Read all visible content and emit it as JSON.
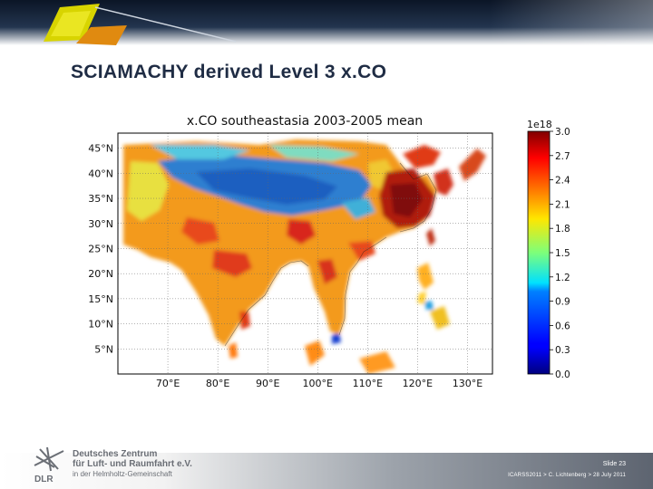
{
  "slide": {
    "title": "SCIAMACHY derived Level 3 x.CO",
    "slide_number": "Slide 23",
    "footer_caption": "ICARSS2011 > C. Lichtenberg > 28 July 2011"
  },
  "logo": {
    "line1": "Deutsches Zentrum",
    "line2": "für Luft- und Raumfahrt e.V.",
    "line3": "in der Helmholtz-Gemeinschaft",
    "mark_text": "DLR"
  },
  "colors": {
    "title": "#1f2c44",
    "ocean": "#ffffff",
    "land_medium": "#f39a1c",
    "land_high": "#a81810",
    "land_low": "#2d7fd0"
  },
  "map": {
    "title": "x.CO southeastasia 2003-2005 mean",
    "region": "southeastasia",
    "period": "2003-2005",
    "lon_range": [
      60,
      135
    ],
    "lat_range": [
      0,
      48
    ],
    "lon_ticks": [
      70,
      80,
      90,
      100,
      110,
      120,
      130
    ],
    "lon_tick_labels": [
      "70°E",
      "80°E",
      "90°E",
      "100°E",
      "110°E",
      "120°E",
      "130°E"
    ],
    "lat_ticks": [
      45,
      40,
      35,
      30,
      25,
      20,
      15,
      10,
      5
    ],
    "lat_tick_labels": [
      "45°N",
      "40°N",
      "35°N",
      "30°N",
      "25°N",
      "20°N",
      "15°N",
      "10°N",
      "5°N"
    ],
    "grid": true
  },
  "colorbar": {
    "exponent": "1e18",
    "range": [
      0.0,
      3.0
    ],
    "ticks": [
      3.0,
      2.7,
      2.4,
      2.1,
      1.8,
      1.5,
      1.2,
      0.9,
      0.6,
      0.3,
      0.0
    ],
    "tick_labels": [
      "3.0",
      "2.7",
      "2.4",
      "2.1",
      "1.8",
      "1.5",
      "1.2",
      "0.9",
      "0.6",
      "0.3",
      "0.0"
    ],
    "colormap": "jet"
  }
}
